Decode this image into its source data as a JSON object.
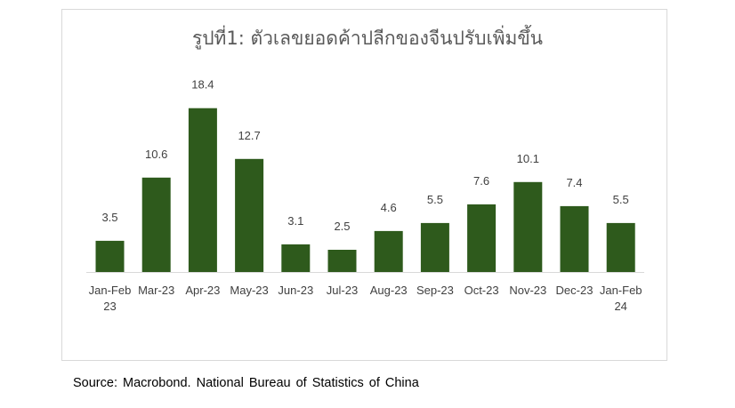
{
  "chart_data": {
    "type": "bar",
    "title": "รูปที่1: ตัวเลขยอดค้าปลีกของจีนปรับเพิ่มขึ้น",
    "categories": [
      [
        "Jan-Feb",
        "23"
      ],
      [
        "Mar-23"
      ],
      [
        "Apr-23"
      ],
      [
        "May-23"
      ],
      [
        "Jun-23"
      ],
      [
        "Jul-23"
      ],
      [
        "Aug-23"
      ],
      [
        "Sep-23"
      ],
      [
        "Oct-23"
      ],
      [
        "Nov-23"
      ],
      [
        "Dec-23"
      ],
      [
        "Jan-Feb",
        "24"
      ]
    ],
    "values": [
      3.5,
      10.6,
      18.4,
      12.7,
      3.1,
      2.5,
      4.6,
      5.5,
      7.6,
      10.1,
      7.4,
      5.5
    ],
    "data_labels": [
      "3.5",
      "10.6",
      "18.4",
      "12.7",
      "3.1",
      "2.5",
      "4.6",
      "5.5",
      "7.6",
      "10.1",
      "7.4",
      "5.5"
    ],
    "ylim": [
      0,
      20
    ],
    "grid": false,
    "legend": "none",
    "bar_color": "#2e5a1c",
    "label_color": "#404040",
    "axis_color": "#d9d9d9"
  },
  "source": "Source: Macrobond. National Bureau of Statistics of China"
}
